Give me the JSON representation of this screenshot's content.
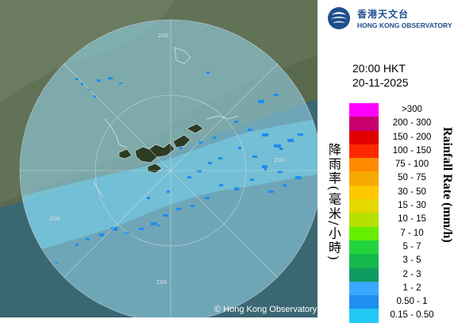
{
  "logo": {
    "name_cn": "香港天文台",
    "name_en": "HONG KONG OBSERVATORY"
  },
  "map": {
    "time": "20:00 HKT",
    "date": "20-11-2025",
    "copyright": "© Hong Kong Observatory",
    "range_rings": [
      {
        "label": "200"
      },
      {
        "label": "200"
      },
      {
        "label": "200"
      },
      {
        "label": "200"
      }
    ]
  },
  "legend": {
    "title_cn": "降雨率(毫米/小時)",
    "title_en": "Rainfall Rate (mm/h)",
    "items": [
      {
        "label": ">300",
        "color": "#ff00ff"
      },
      {
        "label": "200 - 300",
        "color": "#c8006e"
      },
      {
        "label": "150 - 200",
        "color": "#e00000"
      },
      {
        "label": "100 - 150",
        "color": "#ff2a00"
      },
      {
        "label": "75 - 100",
        "color": "#ff8a00"
      },
      {
        "label": "50 - 75",
        "color": "#f6a800"
      },
      {
        "label": "30 - 50",
        "color": "#ffc800"
      },
      {
        "label": "15 - 30",
        "color": "#e6d800"
      },
      {
        "label": "10 - 15",
        "color": "#b6e000"
      },
      {
        "label": "7 - 10",
        "color": "#66ee00"
      },
      {
        "label": "5 - 7",
        "color": "#22d43c"
      },
      {
        "label": "3 - 5",
        "color": "#13b84a"
      },
      {
        "label": "2 - 3",
        "color": "#0f9a60"
      },
      {
        "label": "1 - 2",
        "color": "#3aa8ff"
      },
      {
        "label": "0.50 - 1",
        "color": "#1e8ef0"
      },
      {
        "label": "0.15 - 0.50",
        "color": "#24c8f5"
      }
    ]
  }
}
